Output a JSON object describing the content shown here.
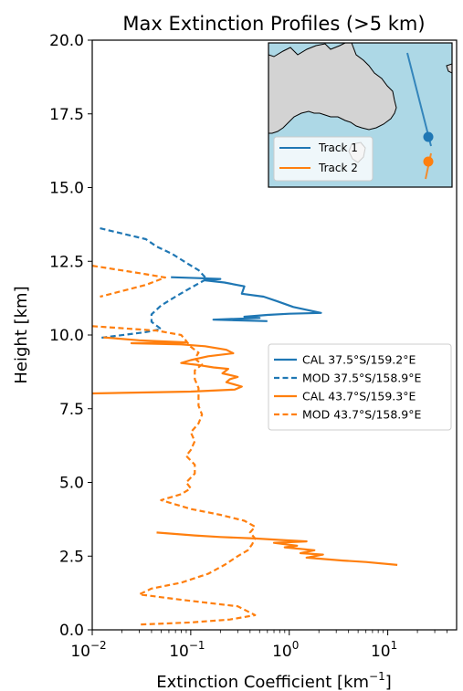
{
  "chart_data": {
    "type": "line",
    "title": "Max Extinction Profiles (>5 km)",
    "xlabel": "Extinction Coefficient [km",
    "xlabel_sup": "−1",
    "xlabel_end": "]",
    "ylabel": "Height [km]",
    "xscale": "log",
    "xlim": [
      0.01,
      50
    ],
    "ylim": [
      0,
      20
    ],
    "x_ticks": [
      {
        "value": 0.01,
        "base": "10",
        "exp": "−2"
      },
      {
        "value": 0.1,
        "base": "10",
        "exp": "−1"
      },
      {
        "value": 1,
        "base": "10",
        "exp": "0"
      },
      {
        "value": 10,
        "base": "10",
        "exp": "1"
      }
    ],
    "y_ticks": [
      {
        "value": 0,
        "label": "0.0"
      },
      {
        "value": 2.5,
        "label": "2.5"
      },
      {
        "value": 5,
        "label": "5.0"
      },
      {
        "value": 7.5,
        "label": "7.5"
      },
      {
        "value": 10,
        "label": "10.0"
      },
      {
        "value": 12.5,
        "label": "12.5"
      },
      {
        "value": 15,
        "label": "15.0"
      },
      {
        "value": 17.5,
        "label": "17.5"
      },
      {
        "value": 20,
        "label": "20.0"
      }
    ],
    "legend_position": "center-right",
    "series": [
      {
        "name": "CAL 37.5°S/159.2°E",
        "color": "#1f77b4",
        "style": "solid",
        "points": [
          [
            0.063,
            11.96
          ],
          [
            0.12,
            11.93
          ],
          [
            0.2,
            11.9
          ],
          [
            0.14,
            11.85
          ],
          [
            0.22,
            11.78
          ],
          [
            0.35,
            11.65
          ],
          [
            0.33,
            11.4
          ],
          [
            0.55,
            11.3
          ],
          [
            0.75,
            11.15
          ],
          [
            1.1,
            10.95
          ],
          [
            2.1,
            10.75
          ],
          [
            1.0,
            10.72
          ],
          [
            0.6,
            10.68
          ],
          [
            0.35,
            10.62
          ],
          [
            0.5,
            10.58
          ],
          [
            0.17,
            10.52
          ],
          [
            0.6,
            10.47
          ]
        ]
      },
      {
        "name": "MOD 37.5°S/158.9°E",
        "color": "#1f77b4",
        "style": "dashed",
        "points": [
          [
            0.012,
            13.62
          ],
          [
            0.035,
            13.25
          ],
          [
            0.045,
            13.0
          ],
          [
            0.065,
            12.75
          ],
          [
            0.09,
            12.45
          ],
          [
            0.12,
            12.2
          ],
          [
            0.145,
            11.9
          ],
          [
            0.1,
            11.6
          ],
          [
            0.07,
            11.3
          ],
          [
            0.05,
            11.0
          ],
          [
            0.04,
            10.7
          ],
          [
            0.04,
            10.45
          ],
          [
            0.05,
            10.2
          ],
          [
            0.035,
            10.1
          ],
          [
            0.012,
            9.9
          ]
        ]
      },
      {
        "name": "CAL 43.7°S/159.3°E",
        "color": "#ff7f0e",
        "style": "solid",
        "points": [
          [
            0.013,
            9.92
          ],
          [
            0.03,
            9.82
          ],
          [
            0.09,
            9.75
          ],
          [
            0.025,
            9.72
          ],
          [
            0.08,
            9.68
          ],
          [
            0.14,
            9.62
          ],
          [
            0.23,
            9.5
          ],
          [
            0.27,
            9.38
          ],
          [
            0.15,
            9.28
          ],
          [
            0.1,
            9.15
          ],
          [
            0.08,
            9.05
          ],
          [
            0.12,
            8.98
          ],
          [
            0.17,
            8.9
          ],
          [
            0.24,
            8.85
          ],
          [
            0.21,
            8.7
          ],
          [
            0.3,
            8.58
          ],
          [
            0.25,
            8.5
          ],
          [
            0.23,
            8.4
          ],
          [
            0.33,
            8.25
          ],
          [
            0.28,
            8.15
          ],
          [
            0.1,
            8.08
          ],
          [
            0.01,
            8.02
          ]
        ]
      },
      {
        "name": "MOD 43.7°S/158.9°E",
        "color": "#ff7f0e",
        "style": "dashed",
        "points": [
          [
            0.01,
            12.35
          ],
          [
            0.03,
            12.1
          ],
          [
            0.055,
            11.95
          ],
          [
            0.035,
            11.7
          ],
          [
            0.012,
            11.3
          ]
        ]
      },
      {
        "name": "",
        "color": "#ff7f0e",
        "style": "dashed",
        "points": [
          [
            0.01,
            10.3
          ],
          [
            0.045,
            10.15
          ],
          [
            0.08,
            10.0
          ],
          [
            0.09,
            9.8
          ],
          [
            0.1,
            9.6
          ],
          [
            0.12,
            9.4
          ],
          [
            0.11,
            9.2
          ],
          [
            0.13,
            9.0
          ],
          [
            0.11,
            8.8
          ],
          [
            0.11,
            8.5
          ],
          [
            0.12,
            8.2
          ],
          [
            0.12,
            7.9
          ],
          [
            0.12,
            7.6
          ],
          [
            0.13,
            7.3
          ],
          [
            0.12,
            7.0
          ],
          [
            0.1,
            6.7
          ],
          [
            0.11,
            6.4
          ],
          [
            0.1,
            6.1
          ],
          [
            0.09,
            5.9
          ],
          [
            0.11,
            5.6
          ],
          [
            0.11,
            5.3
          ],
          [
            0.09,
            5.0
          ],
          [
            0.1,
            4.8
          ],
          [
            0.08,
            4.6
          ],
          [
            0.05,
            4.4
          ],
          [
            0.1,
            4.1
          ],
          [
            0.2,
            3.9
          ],
          [
            0.35,
            3.7
          ],
          [
            0.45,
            3.5
          ],
          [
            0.4,
            3.3
          ],
          [
            0.45,
            3.1
          ],
          [
            0.42,
            2.9
          ],
          [
            0.38,
            2.7
          ],
          [
            0.3,
            2.5
          ],
          [
            0.22,
            2.2
          ],
          [
            0.15,
            1.9
          ],
          [
            0.08,
            1.6
          ],
          [
            0.04,
            1.4
          ],
          [
            0.03,
            1.2
          ],
          [
            0.09,
            1.0
          ],
          [
            0.3,
            0.8
          ],
          [
            0.45,
            0.5
          ],
          [
            0.25,
            0.35
          ],
          [
            0.1,
            0.25
          ],
          [
            0.03,
            0.18
          ]
        ]
      },
      {
        "name": "",
        "color": "#ff7f0e",
        "style": "solid",
        "points": [
          [
            0.045,
            3.3
          ],
          [
            0.11,
            3.2
          ],
          [
            0.2,
            3.15
          ],
          [
            0.45,
            3.1
          ],
          [
            0.8,
            3.05
          ],
          [
            1.5,
            3.0
          ],
          [
            0.7,
            2.95
          ],
          [
            1.2,
            2.85
          ],
          [
            0.9,
            2.8
          ],
          [
            1.8,
            2.7
          ],
          [
            1.3,
            2.6
          ],
          [
            2.2,
            2.55
          ],
          [
            1.5,
            2.45
          ],
          [
            3.5,
            2.35
          ],
          [
            6.0,
            2.3
          ],
          [
            12.5,
            2.2
          ]
        ]
      }
    ],
    "inset": {
      "legend": [
        {
          "label": "Track 1",
          "color": "#1f77b4"
        },
        {
          "label": "Track 2",
          "color": "#ff7f0e"
        }
      ],
      "ocean_color": "#add8e6",
      "land_color": "#d3d3d3"
    }
  }
}
